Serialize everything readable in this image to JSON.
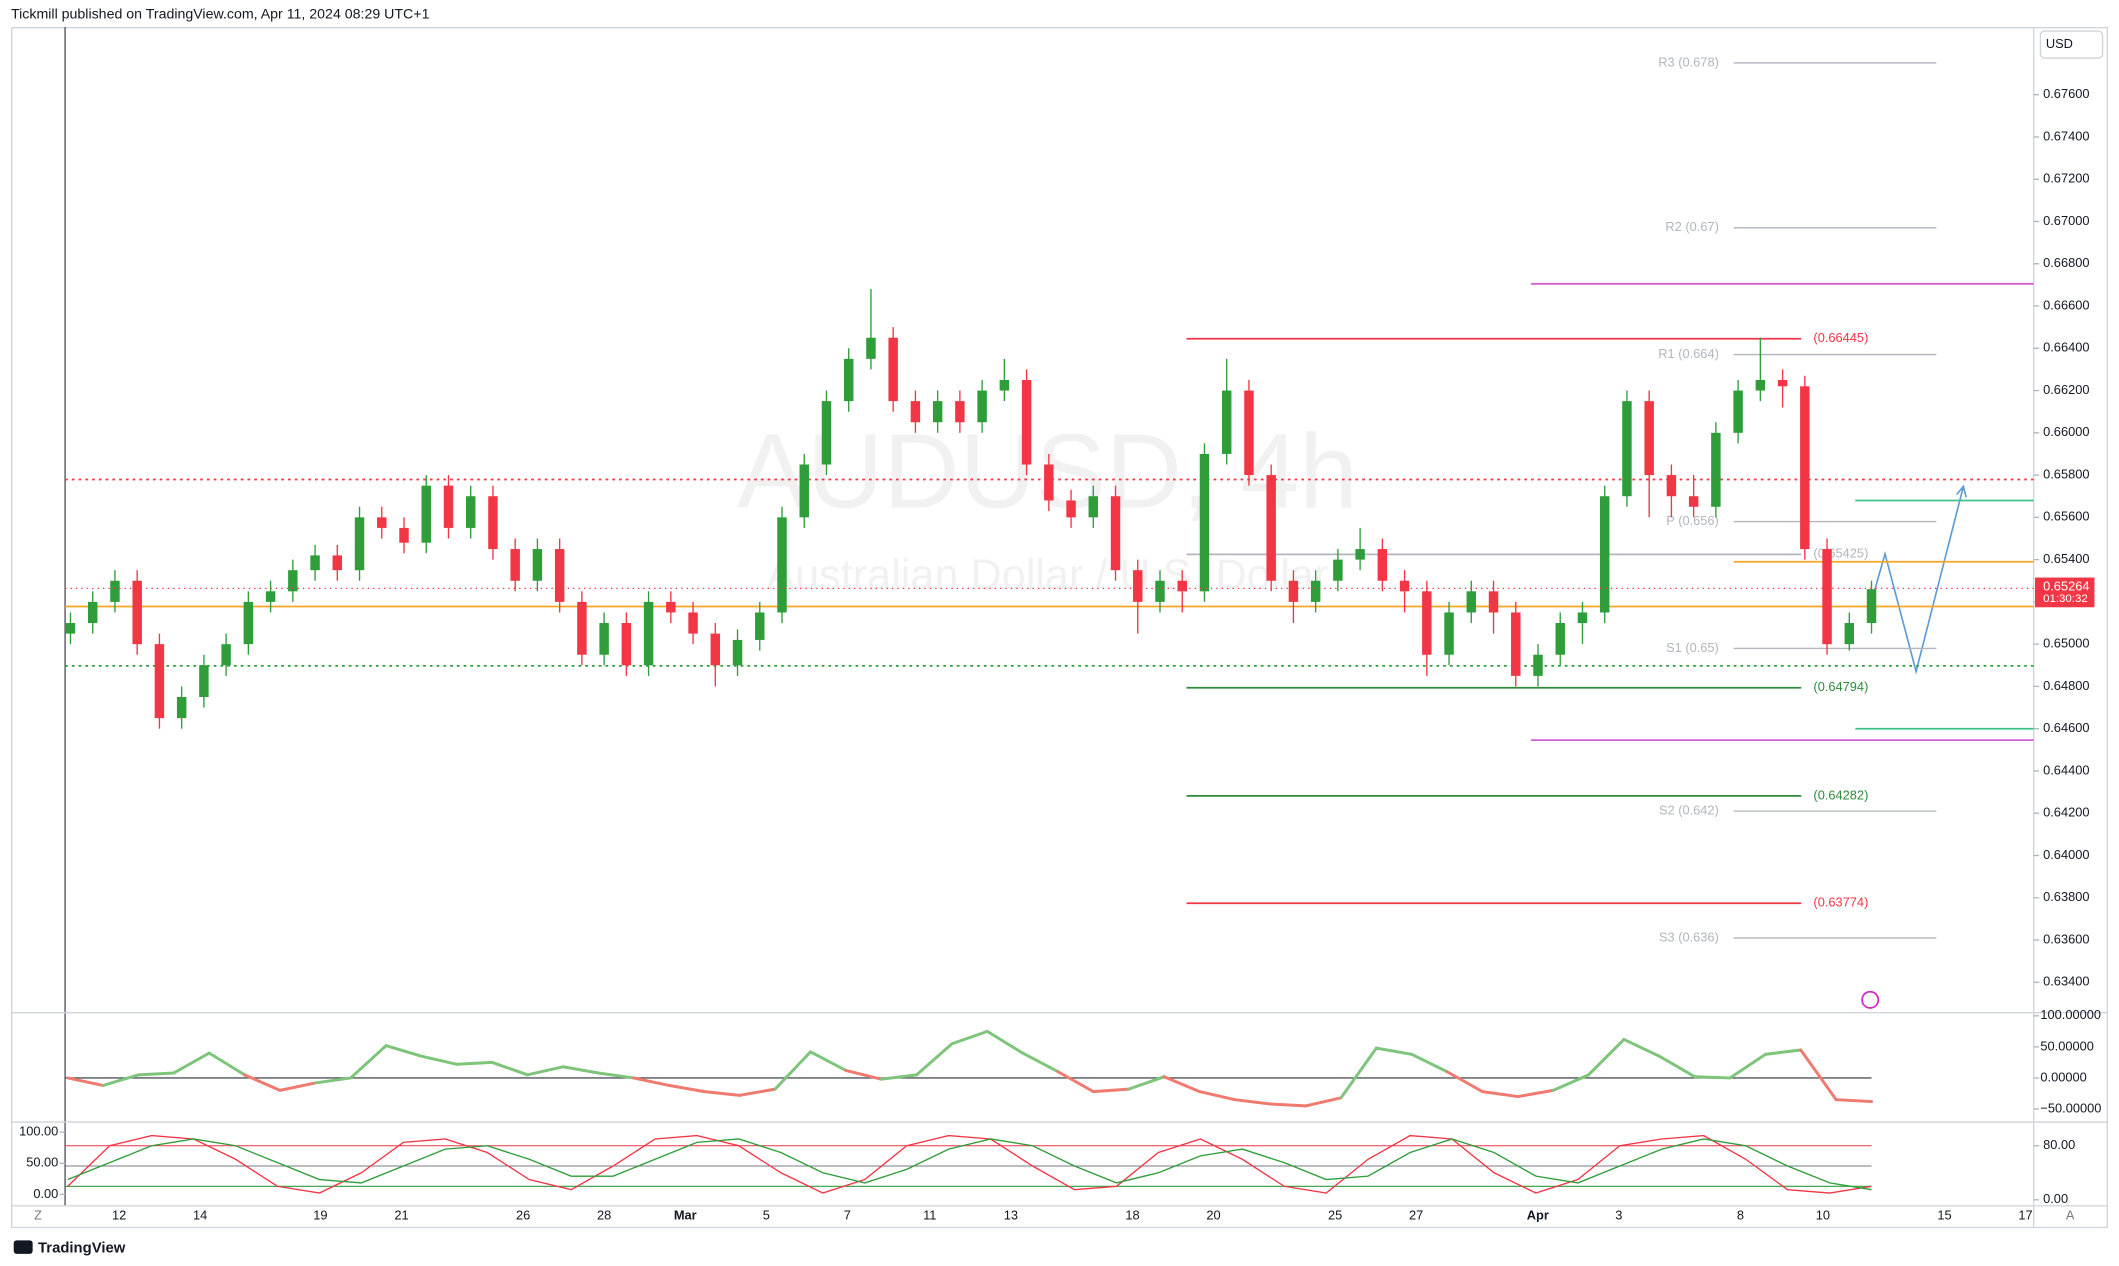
{
  "header": {
    "publisher": "Tickmill published on TradingView.com, Apr 11, 2024 08:29 UTC+1"
  },
  "chart_data": {
    "type": "candlestick",
    "title": "AUDUSD, 4h",
    "subtitle": "Australian Dollar / U.S. Dollar",
    "currency": "USD",
    "open": [
      0.6505,
      0.651,
      0.652,
      0.653,
      0.65,
      0.6465,
      0.6475,
      0.649,
      0.65,
      0.652,
      0.6525,
      0.6535,
      0.6542,
      0.6535,
      0.656,
      0.6555,
      0.6548,
      0.6575,
      0.6555,
      0.657,
      0.6545,
      0.653,
      0.6545,
      0.652,
      0.6495,
      0.651,
      0.649,
      0.652,
      0.6515,
      0.6505,
      0.649,
      0.6502,
      0.6515,
      0.656,
      0.6585,
      0.6615,
      0.6635,
      0.6645,
      0.6615,
      0.6605,
      0.6615,
      0.6605,
      0.662,
      0.6625,
      0.6585,
      0.6568,
      0.656,
      0.657,
      0.6535,
      0.652,
      0.653,
      0.6525,
      0.659,
      0.662,
      0.658,
      0.653,
      0.652,
      0.653,
      0.654,
      0.6545,
      0.653,
      0.6525,
      0.6495,
      0.6515,
      0.6525,
      0.6515,
      0.6485,
      0.6495,
      0.651,
      0.6515,
      0.657,
      0.6615,
      0.658,
      0.657,
      0.6565,
      0.66,
      0.662,
      0.6625,
      0.6622,
      0.6545,
      0.65,
      0.651
    ],
    "high": [
      0.6515,
      0.6525,
      0.6535,
      0.6535,
      0.6505,
      0.648,
      0.6495,
      0.6505,
      0.6525,
      0.653,
      0.654,
      0.6547,
      0.6547,
      0.6565,
      0.6565,
      0.656,
      0.658,
      0.658,
      0.6575,
      0.6575,
      0.655,
      0.655,
      0.655,
      0.6525,
      0.6515,
      0.6515,
      0.6525,
      0.6525,
      0.652,
      0.651,
      0.6507,
      0.652,
      0.6565,
      0.659,
      0.662,
      0.664,
      0.6668,
      0.665,
      0.662,
      0.662,
      0.662,
      0.6625,
      0.6635,
      0.663,
      0.659,
      0.6573,
      0.6575,
      0.6575,
      0.654,
      0.6535,
      0.6535,
      0.6595,
      0.6635,
      0.6625,
      0.6585,
      0.6535,
      0.6535,
      0.6545,
      0.6555,
      0.655,
      0.6535,
      0.653,
      0.652,
      0.653,
      0.653,
      0.652,
      0.65,
      0.6515,
      0.652,
      0.6575,
      0.662,
      0.662,
      0.6585,
      0.658,
      0.6605,
      0.6625,
      0.6645,
      0.663,
      0.6627,
      0.655,
      0.6515,
      0.653
    ],
    "low": [
      0.65,
      0.6505,
      0.6515,
      0.6495,
      0.646,
      0.646,
      0.647,
      0.6485,
      0.6495,
      0.6515,
      0.652,
      0.653,
      0.653,
      0.653,
      0.655,
      0.6543,
      0.6543,
      0.655,
      0.655,
      0.654,
      0.6525,
      0.6525,
      0.6515,
      0.649,
      0.649,
      0.6485,
      0.6485,
      0.651,
      0.65,
      0.648,
      0.6485,
      0.6497,
      0.651,
      0.6555,
      0.658,
      0.661,
      0.663,
      0.661,
      0.66,
      0.66,
      0.66,
      0.66,
      0.6615,
      0.658,
      0.6563,
      0.6555,
      0.6555,
      0.653,
      0.6505,
      0.6515,
      0.6515,
      0.652,
      0.6585,
      0.6575,
      0.6525,
      0.651,
      0.6515,
      0.6525,
      0.6535,
      0.6525,
      0.6515,
      0.6485,
      0.649,
      0.651,
      0.6505,
      0.648,
      0.648,
      0.649,
      0.65,
      0.651,
      0.6565,
      0.656,
      0.656,
      0.656,
      0.656,
      0.6595,
      0.6615,
      0.6612,
      0.654,
      0.6495,
      0.6497,
      0.6505
    ],
    "close": [
      0.651,
      0.652,
      0.653,
      0.65,
      0.6465,
      0.6475,
      0.649,
      0.65,
      0.652,
      0.6525,
      0.6535,
      0.6542,
      0.6535,
      0.656,
      0.6555,
      0.6548,
      0.6575,
      0.6555,
      0.657,
      0.6545,
      0.653,
      0.6545,
      0.652,
      0.6495,
      0.651,
      0.649,
      0.652,
      0.6515,
      0.6505,
      0.649,
      0.6502,
      0.6515,
      0.656,
      0.6585,
      0.6615,
      0.6635,
      0.6645,
      0.6615,
      0.6605,
      0.6615,
      0.6605,
      0.662,
      0.6625,
      0.6585,
      0.6568,
      0.656,
      0.657,
      0.6535,
      0.652,
      0.653,
      0.6525,
      0.659,
      0.662,
      0.658,
      0.653,
      0.652,
      0.653,
      0.654,
      0.6545,
      0.653,
      0.6525,
      0.6495,
      0.6515,
      0.6525,
      0.6515,
      0.6485,
      0.6495,
      0.651,
      0.6515,
      0.657,
      0.6615,
      0.658,
      0.657,
      0.6565,
      0.66,
      0.662,
      0.6625,
      0.6622,
      0.6545,
      0.65,
      0.651,
      0.6526
    ],
    "up_color": "#2e9d3a",
    "down_color": "#f23645",
    "x_labels": [
      "12",
      "14",
      "19",
      "21",
      "26",
      "28",
      "Mar",
      "5",
      "7",
      "11",
      "13",
      "18",
      "20",
      "25",
      "27",
      "Apr",
      "3",
      "8",
      "10",
      "15",
      "17"
    ],
    "ylim": [
      0.63266,
      0.6792
    ],
    "yticks": [
      {
        "value": 0.676,
        "label": "0.67600"
      },
      {
        "value": 0.674,
        "label": "0.67400"
      },
      {
        "value": 0.672,
        "label": "0.67200"
      },
      {
        "value": 0.67,
        "label": "0.67000"
      },
      {
        "value": 0.668,
        "label": "0.66800"
      },
      {
        "value": 0.666,
        "label": "0.66600"
      },
      {
        "value": 0.664,
        "label": "0.66400"
      },
      {
        "value": 0.662,
        "label": "0.66200"
      },
      {
        "value": 0.66,
        "label": "0.66000"
      },
      {
        "value": 0.658,
        "label": "0.65800"
      },
      {
        "value": 0.656,
        "label": "0.65600"
      },
      {
        "value": 0.654,
        "label": "0.65400"
      },
      {
        "value": 0.652,
        "label": "0.65200"
      },
      {
        "value": 0.65,
        "label": "0.65000"
      },
      {
        "value": 0.648,
        "label": "0.64800"
      },
      {
        "value": 0.646,
        "label": "0.64600"
      },
      {
        "value": 0.644,
        "label": "0.64400"
      },
      {
        "value": 0.642,
        "label": "0.64200"
      },
      {
        "value": 0.64,
        "label": "0.64000"
      },
      {
        "value": 0.638,
        "label": "0.63800"
      },
      {
        "value": 0.636,
        "label": "0.63600"
      },
      {
        "value": 0.634,
        "label": "0.63400"
      }
    ],
    "last_price": 0.65264,
    "last_price_color": "#f23645",
    "countdown": "01:30:32",
    "levels": [
      {
        "value": 0.6775,
        "label": "R3 (0.678)",
        "color": "#b2b5be",
        "style": "pivot"
      },
      {
        "value": 0.6697,
        "label": "R2 (0.67)",
        "color": "#b2b5be",
        "style": "pivot"
      },
      {
        "value": 0.6637,
        "label": "R1 (0.664)",
        "color": "#b2b5be",
        "style": "pivot"
      },
      {
        "value": 0.6558,
        "label": "P (0.656)",
        "color": "#b2b5be",
        "style": "pivot"
      },
      {
        "value": 0.6498,
        "label": "S1 (0.65)",
        "color": "#b2b5be",
        "style": "pivot"
      },
      {
        "value": 0.6421,
        "label": "S2 (0.642)",
        "color": "#b2b5be",
        "style": "pivot"
      },
      {
        "value": 0.6361,
        "label": "S3 (0.636)",
        "color": "#b2b5be",
        "style": "pivot"
      },
      {
        "value": 0.66445,
        "label": "(0.66445)",
        "color": "#f23645",
        "style": "zone"
      },
      {
        "value": 0.65425,
        "label": "(0.65425)",
        "color": "#b2b5be",
        "style": "zone"
      },
      {
        "value": 0.64794,
        "label": "(0.64794)",
        "color": "#2e8b3a",
        "style": "zone"
      },
      {
        "value": 0.64282,
        "label": "(0.64282)",
        "color": "#2e8b3a",
        "style": "zone"
      },
      {
        "value": 0.63774,
        "label": "(0.63774)",
        "color": "#f23645",
        "style": "zone"
      },
      {
        "value": 0.65178,
        "color": "#f5a623",
        "style": "full"
      },
      {
        "value": 0.65779,
        "color": "#f23645",
        "style": "full",
        "dash": true
      },
      {
        "value": 0.64897,
        "color": "#2e9d3a",
        "style": "full",
        "dash": true
      },
      {
        "value": 0.66705,
        "color": "#d35fd3",
        "style": "mid"
      },
      {
        "value": 0.64546,
        "color": "#d35fd3",
        "style": "mid"
      },
      {
        "value": 0.6539,
        "color": "#f5a623",
        "style": "short"
      },
      {
        "value": 0.6568,
        "color": "#3fc28a",
        "style": "right"
      },
      {
        "value": 0.646,
        "color": "#3fc28a",
        "style": "right"
      }
    ]
  },
  "oscillator": {
    "type": "line",
    "values": [
      0,
      -12,
      5,
      8,
      40,
      5,
      -20,
      -8,
      0,
      52,
      35,
      22,
      25,
      5,
      18,
      8,
      0,
      -12,
      -22,
      -28,
      -18,
      42,
      12,
      -2,
      5,
      55,
      75,
      40,
      10,
      -22,
      -18,
      2,
      -22,
      -35,
      -42,
      -45,
      -32,
      48,
      38,
      10,
      -22,
      -30,
      -20,
      5,
      62,
      35,
      2,
      0,
      38,
      45,
      -35,
      -38
    ],
    "up_color": "#7ec47a",
    "down_color": "#f07a6f",
    "baseline": 0,
    "ylim": [
      -70,
      104
    ],
    "yticks": [
      {
        "value": 100,
        "label": "100.00000"
      },
      {
        "value": 50,
        "label": "50.00000"
      },
      {
        "value": 0,
        "label": "0.00000"
      },
      {
        "value": -50,
        "label": "−50.00000"
      }
    ]
  },
  "stochastic": {
    "type": "line",
    "series": [
      {
        "color": "#f23645",
        "values": [
          20,
          80,
          95,
          90,
          60,
          20,
          10,
          40,
          85,
          90,
          70,
          30,
          15,
          50,
          90,
          95,
          80,
          40,
          10,
          30,
          80,
          95,
          90,
          50,
          15,
          20,
          70,
          90,
          60,
          20,
          10,
          60,
          95,
          90,
          40,
          10,
          30,
          80,
          90,
          95,
          60,
          15,
          10,
          20
        ]
      },
      {
        "color": "#2e9d3a",
        "values": [
          30,
          55,
          80,
          90,
          80,
          55,
          30,
          25,
          50,
          75,
          80,
          60,
          35,
          35,
          60,
          85,
          90,
          70,
          40,
          25,
          45,
          75,
          90,
          80,
          50,
          25,
          40,
          65,
          75,
          55,
          30,
          35,
          70,
          90,
          70,
          35,
          25,
          50,
          75,
          90,
          80,
          50,
          25,
          15
        ]
      }
    ],
    "ylim": [
      -8,
      112
    ],
    "yticks": [
      {
        "value": 80,
        "label": "80.00"
      },
      {
        "value": 0,
        "label": "0.00"
      }
    ],
    "y2lim": [
      -17.4,
      113
    ],
    "y2ticks": [
      {
        "value": 100,
        "label": "100.00"
      },
      {
        "value": 50,
        "label": "50.00"
      },
      {
        "value": 0,
        "label": "0.00"
      }
    ],
    "bands": [
      {
        "value": 80,
        "color": "#f23645"
      },
      {
        "value": 50,
        "color": "#787b86"
      },
      {
        "value": 20,
        "color": "#2e9d3a"
      }
    ]
  },
  "ui": {
    "left_button": "Z",
    "right_button": "A",
    "brand": "TradingView"
  }
}
